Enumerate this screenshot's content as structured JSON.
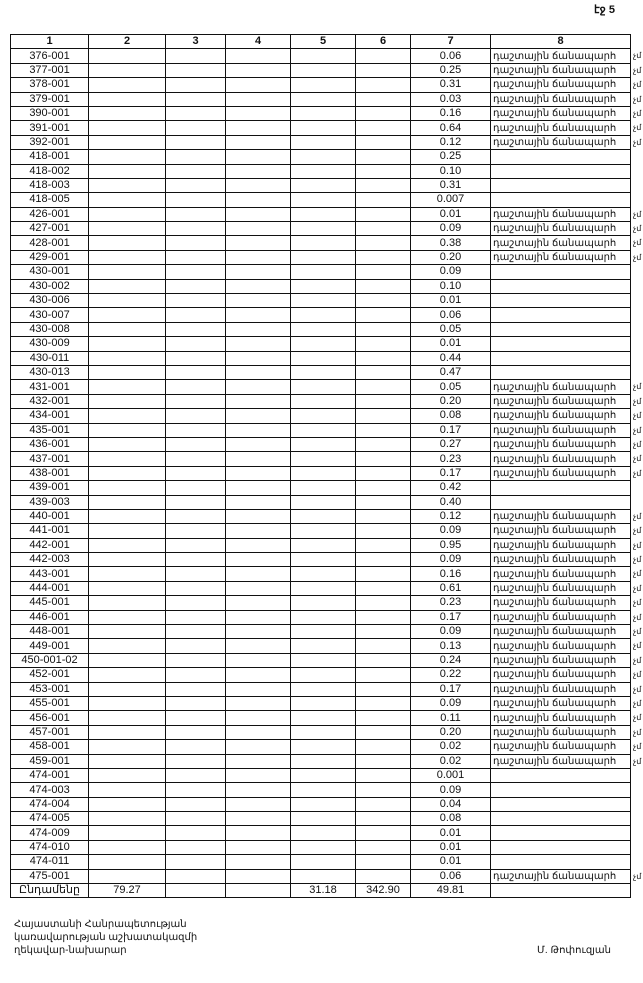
{
  "page_label": "էջ 5",
  "columns": [
    "1",
    "2",
    "3",
    "4",
    "5",
    "6",
    "7",
    "8"
  ],
  "road_label": "դաշտային ճանապարհ",
  "margin_mark": "չմ",
  "rows": [
    {
      "id": "376-001",
      "v7": "0.06",
      "road": true
    },
    {
      "id": "377-001",
      "v7": "0.25",
      "road": true
    },
    {
      "id": "378-001",
      "v7": "0.31",
      "road": true
    },
    {
      "id": "379-001",
      "v7": "0.03",
      "road": true
    },
    {
      "id": "390-001",
      "v7": "0.16",
      "road": true
    },
    {
      "id": "391-001",
      "v7": "0.64",
      "road": true
    },
    {
      "id": "392-001",
      "v7": "0.12",
      "road": true
    },
    {
      "id": "418-001",
      "v7": "0.25",
      "road": false
    },
    {
      "id": "418-002",
      "v7": "0.10",
      "road": false
    },
    {
      "id": "418-003",
      "v7": "0.31",
      "road": false
    },
    {
      "id": "418-005",
      "v7": "0.007",
      "road": false
    },
    {
      "id": "426-001",
      "v7": "0.01",
      "road": true
    },
    {
      "id": "427-001",
      "v7": "0.09",
      "road": true
    },
    {
      "id": "428-001",
      "v7": "0.38",
      "road": true
    },
    {
      "id": "429-001",
      "v7": "0.20",
      "road": true
    },
    {
      "id": "430-001",
      "v7": "0.09",
      "road": false
    },
    {
      "id": "430-002",
      "v7": "0.10",
      "road": false
    },
    {
      "id": "430-006",
      "v7": "0.01",
      "road": false
    },
    {
      "id": "430-007",
      "v7": "0.06",
      "road": false
    },
    {
      "id": "430-008",
      "v7": "0.05",
      "road": false
    },
    {
      "id": "430-009",
      "v7": "0.01",
      "road": false
    },
    {
      "id": "430-011",
      "v7": "0.44",
      "road": false
    },
    {
      "id": "430-013",
      "v7": "0.47",
      "road": false
    },
    {
      "id": "431-001",
      "v7": "0.05",
      "road": true
    },
    {
      "id": "432-001",
      "v7": "0.20",
      "road": true
    },
    {
      "id": "434-001",
      "v7": "0.08",
      "road": true
    },
    {
      "id": "435-001",
      "v7": "0.17",
      "road": true
    },
    {
      "id": "436-001",
      "v7": "0.27",
      "road": true
    },
    {
      "id": "437-001",
      "v7": "0.23",
      "road": true
    },
    {
      "id": "438-001",
      "v7": "0.17",
      "road": true
    },
    {
      "id": "439-001",
      "v7": "0.42",
      "road": false
    },
    {
      "id": "439-003",
      "v7": "0.40",
      "road": false
    },
    {
      "id": "440-001",
      "v7": "0.12",
      "road": true
    },
    {
      "id": "441-001",
      "v7": "0.09",
      "road": true
    },
    {
      "id": "442-001",
      "v7": "0.95",
      "road": true
    },
    {
      "id": "442-003",
      "v7": "0.09",
      "road": true
    },
    {
      "id": "443-001",
      "v7": "0.16",
      "road": true
    },
    {
      "id": "444-001",
      "v7": "0.61",
      "road": true
    },
    {
      "id": "445-001",
      "v7": "0.23",
      "road": true
    },
    {
      "id": "446-001",
      "v7": "0.17",
      "road": true
    },
    {
      "id": "448-001",
      "v7": "0.09",
      "road": true
    },
    {
      "id": "449-001",
      "v7": "0.13",
      "road": true
    },
    {
      "id": "450-001-02",
      "v7": "0.24",
      "road": true
    },
    {
      "id": "452-001",
      "v7": "0.22",
      "road": true
    },
    {
      "id": "453-001",
      "v7": "0.17",
      "road": true
    },
    {
      "id": "455-001",
      "v7": "0.09",
      "road": true
    },
    {
      "id": "456-001",
      "v7": "0.11",
      "road": true
    },
    {
      "id": "457-001",
      "v7": "0.20",
      "road": true
    },
    {
      "id": "458-001",
      "v7": "0.02",
      "road": true
    },
    {
      "id": "459-001",
      "v7": "0.02",
      "road": true
    },
    {
      "id": "474-001",
      "v7": "0.001",
      "road": false
    },
    {
      "id": "474-003",
      "v7": "0.09",
      "road": false
    },
    {
      "id": "474-004",
      "v7": "0.04",
      "road": false
    },
    {
      "id": "474-005",
      "v7": "0.08",
      "road": false
    },
    {
      "id": "474-009",
      "v7": "0.01",
      "road": false
    },
    {
      "id": "474-010",
      "v7": "0.01",
      "road": false
    },
    {
      "id": "474-011",
      "v7": "0.01",
      "road": false
    },
    {
      "id": "475-001",
      "v7": "0.06",
      "road": true
    }
  ],
  "total": {
    "label": "Ընդամենը",
    "c2": "79.27",
    "c3": "",
    "c4": "",
    "c5": "31.18",
    "c6": "342.90",
    "c7": "49.81",
    "c8": ""
  },
  "footer": {
    "line1": "Հայաստանի Հանրապետության",
    "line2": "կառավարության աշխատակազմի",
    "line3": "ղեկավար-նախարար",
    "signature": "Մ. Թոփուզյան"
  }
}
